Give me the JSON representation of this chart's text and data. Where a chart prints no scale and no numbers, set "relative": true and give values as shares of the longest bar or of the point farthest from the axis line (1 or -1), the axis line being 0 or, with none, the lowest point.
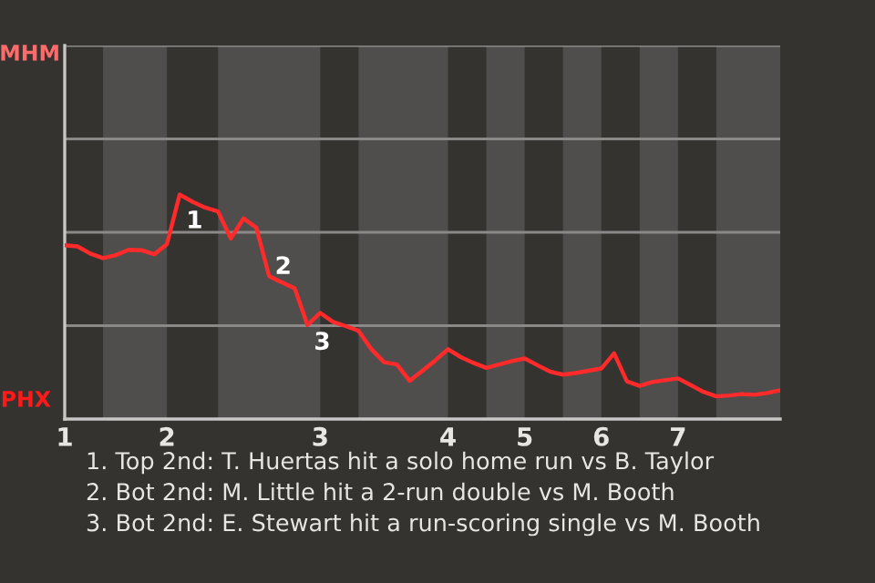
{
  "chart_data": {
    "type": "line",
    "relative": true,
    "categories": [
      "1",
      null,
      null,
      null,
      null,
      null,
      null,
      null,
      "2",
      null,
      null,
      null,
      null,
      null,
      null,
      null,
      null,
      null,
      null,
      null,
      "3",
      null,
      null,
      null,
      null,
      null,
      null,
      null,
      null,
      null,
      "4",
      null,
      null,
      null,
      null,
      null,
      "5",
      null,
      null,
      null,
      null,
      null,
      "6",
      null,
      null,
      null,
      null,
      null,
      "7",
      null,
      null,
      null,
      null,
      null,
      null,
      null,
      null
    ],
    "series": [
      {
        "color": "#ff2a2a",
        "values": [
          0.774,
          0.769,
          0.737,
          0.717,
          0.73,
          0.754,
          0.752,
          0.734,
          0.779,
          1,
          0.968,
          0.942,
          0.925,
          0.804,
          0.894,
          0.852,
          0.636,
          0.609,
          0.582,
          0.419,
          0.473,
          0.433,
          0.414,
          0.393,
          0.311,
          0.253,
          0.243,
          0.17,
          0.215,
          0.261,
          0.311,
          0.276,
          0.25,
          0.228,
          0.243,
          0.258,
          0.27,
          0.24,
          0.211,
          0.198,
          0.205,
          0.215,
          0.225,
          0.293,
          0.168,
          0.148,
          0.165,
          0.173,
          0.181,
          0.151,
          0.121,
          0.101,
          0.105,
          0.111,
          0.108,
          0.116,
          0.128
        ]
      }
    ],
    "annotations": [
      "MHM",
      "PHX",
      "1",
      "2",
      "3",
      "1. Top 2nd: T. Huertas hit a solo home run vs B. Taylor",
      "2. Bot 2nd: M. Little hit a 2-run double vs M. Booth",
      "3. Bot 2nd: E. Stewart hit a run-scoring single vs M. Booth"
    ],
    "ref_lines": [
      {
        "axis": "y",
        "value": 0.416,
        "color": "#8a8987"
      },
      {
        "axis": "y",
        "value": 0.832,
        "color": "#8a8987"
      },
      {
        "axis": "y",
        "value": 1.248,
        "color": "#8a8987"
      },
      {
        "axis": "y",
        "value": 1.664,
        "color": "#8a8987"
      }
    ],
    "marker": "none",
    "line_style": "solid"
  }
}
